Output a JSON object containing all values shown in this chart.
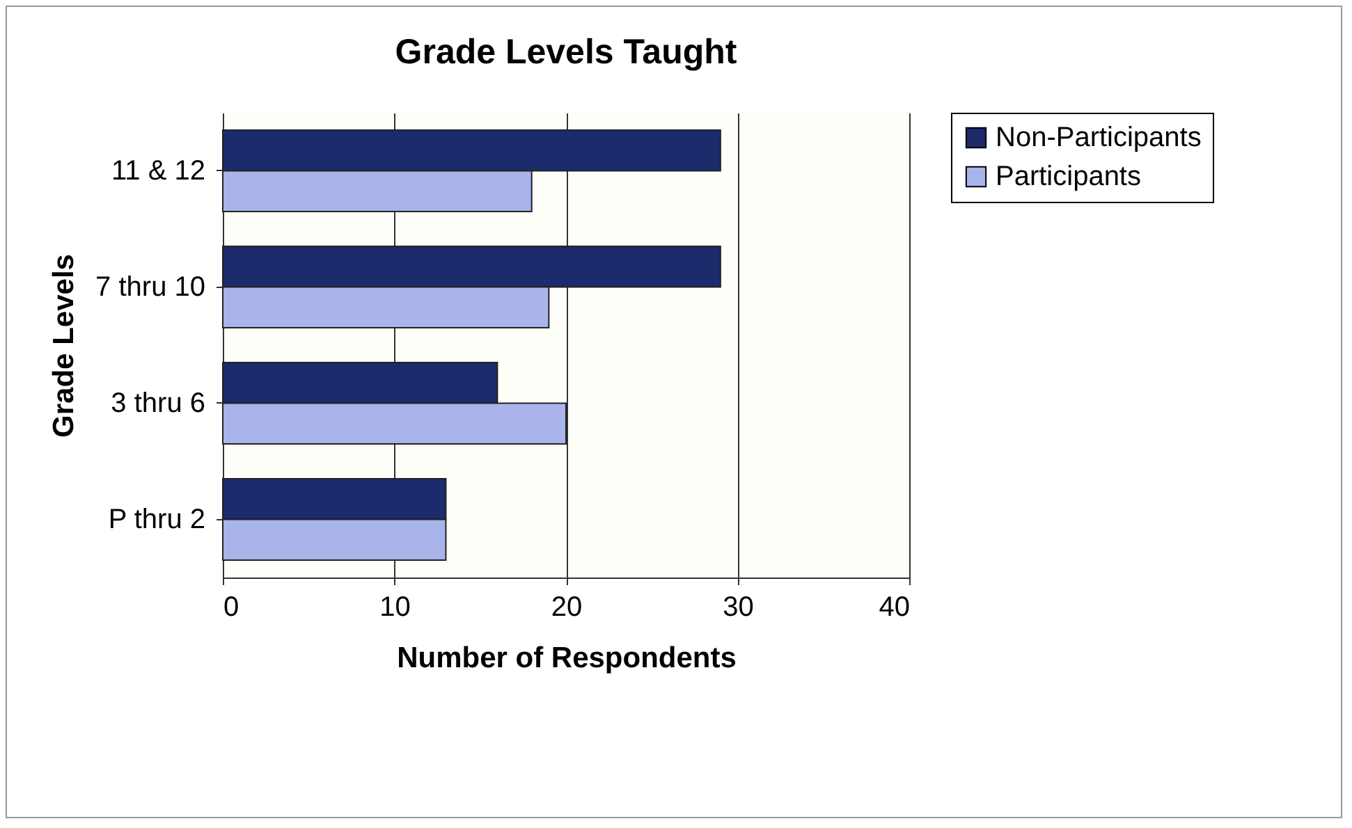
{
  "chart_data": {
    "type": "bar",
    "orientation": "horizontal",
    "title": "Grade Levels Taught",
    "xlabel": "Number of Respondents",
    "ylabel": "Grade Levels",
    "categories": [
      "11 & 12",
      "7 thru 10",
      "3 thru 6",
      "P thru 2"
    ],
    "series": [
      {
        "name": "Non-Participants",
        "color": "#1b2b6b",
        "values": [
          29,
          29,
          16,
          13
        ]
      },
      {
        "name": "Participants",
        "color": "#a9b4ea",
        "values": [
          18,
          19,
          20,
          13
        ]
      }
    ],
    "xlim": [
      0,
      40
    ],
    "xticks": [
      0,
      10,
      20,
      30,
      40
    ],
    "grid": "x",
    "legend": "right"
  }
}
